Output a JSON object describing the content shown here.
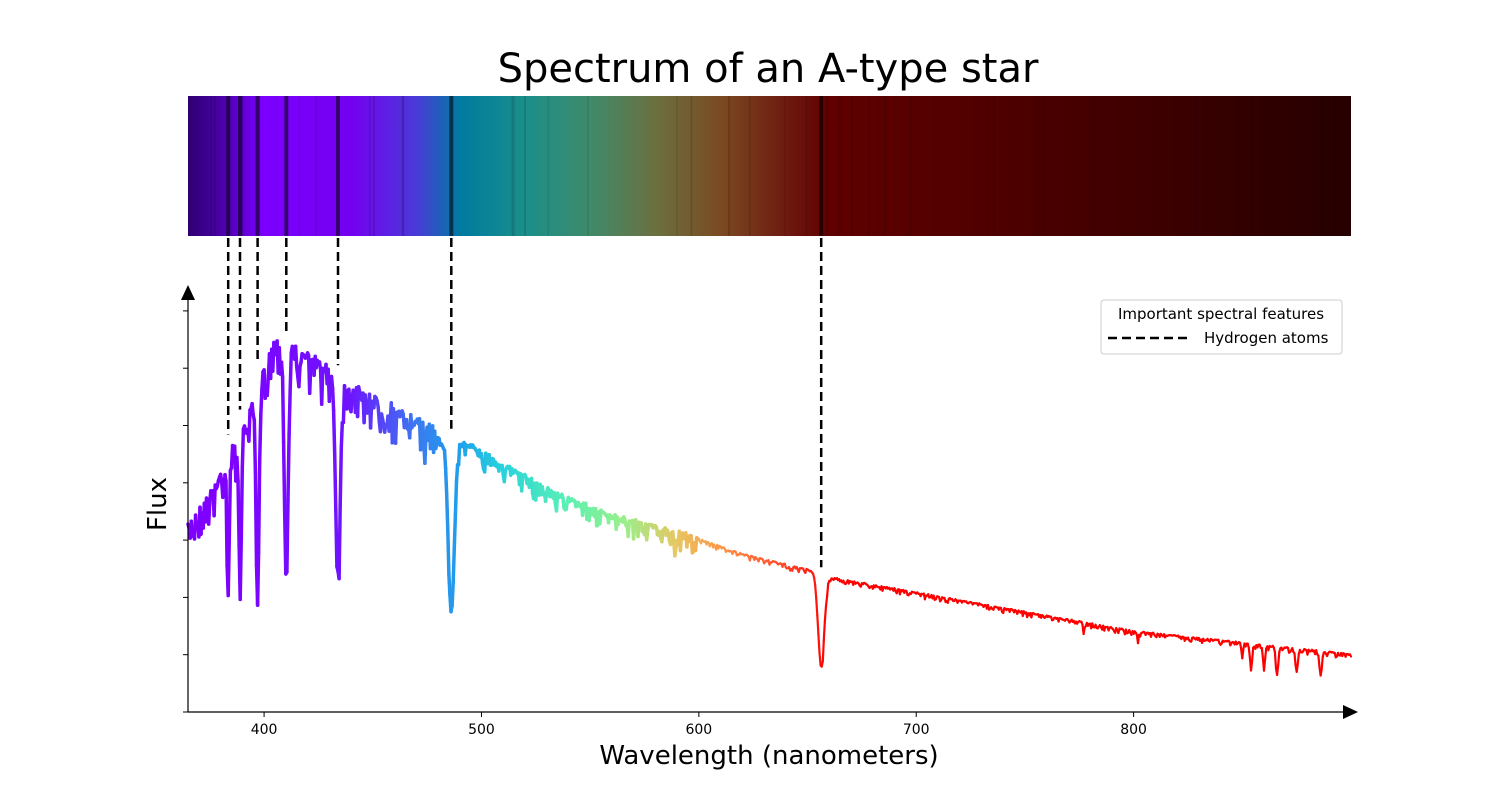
{
  "chart_data": {
    "type": "line",
    "title": "Spectrum of an A-type star",
    "xlabel": "Wavelength (nanometers)",
    "ylabel": "Flux",
    "xlim": [
      365,
      900
    ],
    "ylim": [
      0,
      1.08
    ],
    "xticks": [
      "400",
      "500",
      "600",
      "700",
      "800"
    ],
    "xtick_values": [
      400,
      500,
      600,
      700,
      800
    ],
    "ytick_count": 8,
    "y_tick_labels_shown": false,
    "continuum": [
      [
        365,
        0.48
      ],
      [
        380,
        0.62
      ],
      [
        395,
        0.8
      ],
      [
        405,
        0.97
      ],
      [
        420,
        0.93
      ],
      [
        440,
        0.85
      ],
      [
        460,
        0.79
      ],
      [
        480,
        0.73
      ],
      [
        500,
        0.68
      ],
      [
        530,
        0.58
      ],
      [
        560,
        0.51
      ],
      [
        590,
        0.47
      ],
      [
        620,
        0.41
      ],
      [
        650,
        0.37
      ],
      [
        660,
        0.35
      ],
      [
        700,
        0.31
      ],
      [
        750,
        0.26
      ],
      [
        800,
        0.21
      ],
      [
        850,
        0.18
      ],
      [
        900,
        0.15
      ]
    ],
    "absorption_lines": [
      {
        "x": 383.5,
        "depth": 0.32,
        "width": 0.7
      },
      {
        "x": 388.9,
        "depth": 0.38,
        "width": 0.8
      },
      {
        "x": 397.0,
        "depth": 0.55,
        "width": 1.0
      },
      {
        "x": 410.2,
        "depth": 0.6,
        "width": 1.2
      },
      {
        "x": 434.0,
        "depth": 0.5,
        "width": 1.5
      },
      {
        "x": 486.1,
        "depth": 0.45,
        "width": 2.0
      },
      {
        "x": 589.0,
        "depth": 0.06,
        "width": 0.6
      },
      {
        "x": 656.3,
        "depth": 0.24,
        "width": 2.0
      },
      {
        "x": 777.0,
        "depth": 0.03,
        "width": 0.4
      },
      {
        "x": 802.0,
        "depth": 0.03,
        "width": 0.4
      },
      {
        "x": 850.0,
        "depth": 0.04,
        "width": 0.5
      },
      {
        "x": 854.0,
        "depth": 0.06,
        "width": 0.7
      },
      {
        "x": 860.0,
        "depth": 0.06,
        "width": 0.7
      },
      {
        "x": 866.0,
        "depth": 0.07,
        "width": 0.8
      },
      {
        "x": 875.0,
        "depth": 0.06,
        "width": 0.8
      },
      {
        "x": 886.0,
        "depth": 0.06,
        "width": 0.8
      }
    ],
    "feature_lines": [
      383.5,
      388.9,
      397.0,
      410.2,
      434.0,
      486.1,
      656.3
    ],
    "legend": {
      "title": "Important spectral features",
      "entries": [
        "Hydrogen atoms"
      ],
      "placement": "upper right"
    },
    "grid": false,
    "colors": {
      "feature_line": "#000000",
      "axis": "#000000"
    }
  }
}
